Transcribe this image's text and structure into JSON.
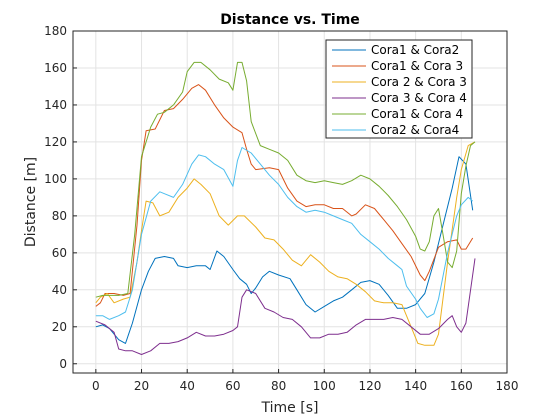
{
  "chart_data": {
    "type": "line",
    "title": "Distance vs. Time",
    "xlabel": "Time [s]",
    "ylabel": "Distance [m]",
    "xlim": [
      -10,
      180
    ],
    "ylim": [
      -5,
      180
    ],
    "xticks": [
      0,
      20,
      40,
      60,
      80,
      100,
      120,
      140,
      160,
      180
    ],
    "yticks": [
      0,
      20,
      40,
      60,
      80,
      100,
      120,
      140,
      160,
      180
    ],
    "grid": true,
    "legend_position": "top-right",
    "series": [
      {
        "name": "Cora1 & Cora2",
        "color": "#0072bd",
        "points": [
          [
            0,
            20
          ],
          [
            3,
            21
          ],
          [
            6,
            19
          ],
          [
            10,
            13
          ],
          [
            13,
            11
          ],
          [
            16,
            22
          ],
          [
            20,
            40
          ],
          [
            23,
            50
          ],
          [
            26,
            57
          ],
          [
            30,
            58
          ],
          [
            34,
            57
          ],
          [
            36,
            53
          ],
          [
            40,
            52
          ],
          [
            44,
            53
          ],
          [
            48,
            53
          ],
          [
            50,
            51
          ],
          [
            53,
            61
          ],
          [
            56,
            58
          ],
          [
            60,
            51
          ],
          [
            63,
            46
          ],
          [
            66,
            43
          ],
          [
            68,
            38
          ],
          [
            70,
            41
          ],
          [
            73,
            47
          ],
          [
            76,
            50
          ],
          [
            80,
            48
          ],
          [
            85,
            46
          ],
          [
            88,
            40
          ],
          [
            92,
            32
          ],
          [
            96,
            28
          ],
          [
            100,
            31
          ],
          [
            104,
            34
          ],
          [
            108,
            36
          ],
          [
            112,
            40
          ],
          [
            116,
            44
          ],
          [
            120,
            45
          ],
          [
            124,
            43
          ],
          [
            128,
            37
          ],
          [
            132,
            30
          ],
          [
            136,
            30
          ],
          [
            140,
            32
          ],
          [
            144,
            38
          ],
          [
            148,
            55
          ],
          [
            152,
            75
          ],
          [
            156,
            95
          ],
          [
            159,
            112
          ],
          [
            162,
            108
          ],
          [
            165,
            83
          ]
        ]
      },
      {
        "name": "Cora1 & Cora 3",
        "color": "#d95319",
        "points": [
          [
            0,
            31
          ],
          [
            2,
            33
          ],
          [
            4,
            38
          ],
          [
            8,
            38
          ],
          [
            12,
            37
          ],
          [
            15,
            38
          ],
          [
            18,
            75
          ],
          [
            20,
            110
          ],
          [
            22,
            126
          ],
          [
            26,
            127
          ],
          [
            30,
            137
          ],
          [
            34,
            138
          ],
          [
            38,
            143
          ],
          [
            42,
            149
          ],
          [
            45,
            151
          ],
          [
            48,
            148
          ],
          [
            52,
            140
          ],
          [
            56,
            133
          ],
          [
            60,
            128
          ],
          [
            64,
            125
          ],
          [
            66,
            116
          ],
          [
            68,
            108
          ],
          [
            70,
            105
          ],
          [
            76,
            106
          ],
          [
            80,
            105
          ],
          [
            84,
            95
          ],
          [
            88,
            88
          ],
          [
            92,
            85
          ],
          [
            96,
            86
          ],
          [
            100,
            86
          ],
          [
            104,
            84
          ],
          [
            108,
            84
          ],
          [
            112,
            80
          ],
          [
            114,
            81
          ],
          [
            118,
            86
          ],
          [
            122,
            84
          ],
          [
            126,
            78
          ],
          [
            130,
            72
          ],
          [
            134,
            65
          ],
          [
            138,
            58
          ],
          [
            142,
            48
          ],
          [
            144,
            45
          ],
          [
            146,
            50
          ],
          [
            150,
            63
          ],
          [
            154,
            66
          ],
          [
            158,
            67
          ],
          [
            160,
            62
          ],
          [
            162,
            62
          ],
          [
            165,
            68
          ]
        ]
      },
      {
        "name": "Cora 2 & Cora 3",
        "color": "#edb120",
        "points": [
          [
            0,
            33
          ],
          [
            2,
            36
          ],
          [
            5,
            38
          ],
          [
            8,
            33
          ],
          [
            12,
            35
          ],
          [
            15,
            36
          ],
          [
            18,
            55
          ],
          [
            20,
            72
          ],
          [
            22,
            88
          ],
          [
            25,
            87
          ],
          [
            28,
            80
          ],
          [
            32,
            82
          ],
          [
            36,
            90
          ],
          [
            40,
            95
          ],
          [
            43,
            100
          ],
          [
            46,
            97
          ],
          [
            50,
            92
          ],
          [
            54,
            80
          ],
          [
            58,
            75
          ],
          [
            62,
            80
          ],
          [
            65,
            80
          ],
          [
            70,
            74
          ],
          [
            74,
            68
          ],
          [
            78,
            67
          ],
          [
            82,
            62
          ],
          [
            86,
            56
          ],
          [
            90,
            53
          ],
          [
            94,
            59
          ],
          [
            98,
            55
          ],
          [
            102,
            50
          ],
          [
            106,
            47
          ],
          [
            110,
            46
          ],
          [
            114,
            43
          ],
          [
            118,
            39
          ],
          [
            122,
            34
          ],
          [
            126,
            33
          ],
          [
            130,
            33
          ],
          [
            134,
            32
          ],
          [
            138,
            20
          ],
          [
            141,
            11
          ],
          [
            144,
            10
          ],
          [
            148,
            10
          ],
          [
            150,
            16
          ],
          [
            154,
            55
          ],
          [
            158,
            90
          ],
          [
            160,
            105
          ],
          [
            163,
            118
          ],
          [
            166,
            120
          ]
        ]
      },
      {
        "name": "Cora 3 & Cora 4",
        "color": "#7e2f8e",
        "points": [
          [
            0,
            23
          ],
          [
            4,
            21
          ],
          [
            8,
            17
          ],
          [
            10,
            8
          ],
          [
            13,
            7
          ],
          [
            16,
            7
          ],
          [
            20,
            5
          ],
          [
            24,
            7
          ],
          [
            28,
            11
          ],
          [
            32,
            11
          ],
          [
            36,
            12
          ],
          [
            40,
            14
          ],
          [
            44,
            17
          ],
          [
            48,
            15
          ],
          [
            52,
            15
          ],
          [
            56,
            16
          ],
          [
            60,
            18
          ],
          [
            62,
            20
          ],
          [
            64,
            36
          ],
          [
            66,
            40
          ],
          [
            70,
            38
          ],
          [
            74,
            30
          ],
          [
            78,
            28
          ],
          [
            82,
            25
          ],
          [
            86,
            24
          ],
          [
            90,
            20
          ],
          [
            94,
            14
          ],
          [
            98,
            14
          ],
          [
            102,
            16
          ],
          [
            106,
            16
          ],
          [
            110,
            17
          ],
          [
            114,
            21
          ],
          [
            118,
            24
          ],
          [
            122,
            24
          ],
          [
            126,
            24
          ],
          [
            130,
            25
          ],
          [
            134,
            24
          ],
          [
            138,
            20
          ],
          [
            142,
            16
          ],
          [
            146,
            16
          ],
          [
            150,
            19
          ],
          [
            154,
            24
          ],
          [
            156,
            26
          ],
          [
            158,
            20
          ],
          [
            160,
            17
          ],
          [
            162,
            22
          ],
          [
            166,
            57
          ]
        ]
      },
      {
        "name": "Cora1 & Cora 4",
        "color": "#77ac30",
        "points": [
          [
            0,
            36
          ],
          [
            3,
            37
          ],
          [
            6,
            37
          ],
          [
            10,
            37
          ],
          [
            14,
            38
          ],
          [
            17,
            70
          ],
          [
            20,
            112
          ],
          [
            24,
            128
          ],
          [
            27,
            135
          ],
          [
            30,
            136
          ],
          [
            34,
            140
          ],
          [
            38,
            147
          ],
          [
            40,
            158
          ],
          [
            43,
            163
          ],
          [
            46,
            163
          ],
          [
            50,
            159
          ],
          [
            54,
            154
          ],
          [
            58,
            152
          ],
          [
            60,
            148
          ],
          [
            62,
            163
          ],
          [
            64,
            163
          ],
          [
            66,
            153
          ],
          [
            68,
            131
          ],
          [
            72,
            118
          ],
          [
            76,
            116
          ],
          [
            80,
            114
          ],
          [
            84,
            110
          ],
          [
            88,
            102
          ],
          [
            92,
            99
          ],
          [
            96,
            98
          ],
          [
            100,
            99
          ],
          [
            104,
            98
          ],
          [
            108,
            97
          ],
          [
            112,
            99
          ],
          [
            116,
            102
          ],
          [
            120,
            100
          ],
          [
            124,
            96
          ],
          [
            128,
            91
          ],
          [
            132,
            85
          ],
          [
            136,
            78
          ],
          [
            140,
            69
          ],
          [
            142,
            62
          ],
          [
            144,
            61
          ],
          [
            146,
            66
          ],
          [
            148,
            80
          ],
          [
            150,
            84
          ],
          [
            152,
            70
          ],
          [
            154,
            55
          ],
          [
            156,
            52
          ],
          [
            158,
            61
          ],
          [
            160,
            92
          ],
          [
            162,
            107
          ],
          [
            164,
            118
          ],
          [
            166,
            120
          ]
        ]
      },
      {
        "name": "Cora2 & Cora4",
        "color": "#4dbeee",
        "points": [
          [
            0,
            26
          ],
          [
            3,
            26
          ],
          [
            6,
            24
          ],
          [
            10,
            26
          ],
          [
            13,
            28
          ],
          [
            16,
            40
          ],
          [
            20,
            70
          ],
          [
            24,
            88
          ],
          [
            28,
            93
          ],
          [
            30,
            92
          ],
          [
            34,
            90
          ],
          [
            38,
            97
          ],
          [
            42,
            108
          ],
          [
            45,
            113
          ],
          [
            48,
            112
          ],
          [
            52,
            108
          ],
          [
            56,
            105
          ],
          [
            60,
            96
          ],
          [
            62,
            110
          ],
          [
            64,
            117
          ],
          [
            68,
            114
          ],
          [
            72,
            108
          ],
          [
            76,
            102
          ],
          [
            80,
            97
          ],
          [
            84,
            90
          ],
          [
            88,
            85
          ],
          [
            92,
            82
          ],
          [
            96,
            83
          ],
          [
            100,
            82
          ],
          [
            104,
            80
          ],
          [
            108,
            78
          ],
          [
            112,
            76
          ],
          [
            116,
            70
          ],
          [
            120,
            66
          ],
          [
            124,
            62
          ],
          [
            128,
            57
          ],
          [
            132,
            53
          ],
          [
            134,
            51
          ],
          [
            136,
            42
          ],
          [
            140,
            35
          ],
          [
            142,
            30
          ],
          [
            145,
            25
          ],
          [
            148,
            27
          ],
          [
            150,
            35
          ],
          [
            154,
            60
          ],
          [
            158,
            80
          ],
          [
            160,
            86
          ],
          [
            163,
            90
          ],
          [
            165,
            88
          ]
        ]
      }
    ]
  }
}
